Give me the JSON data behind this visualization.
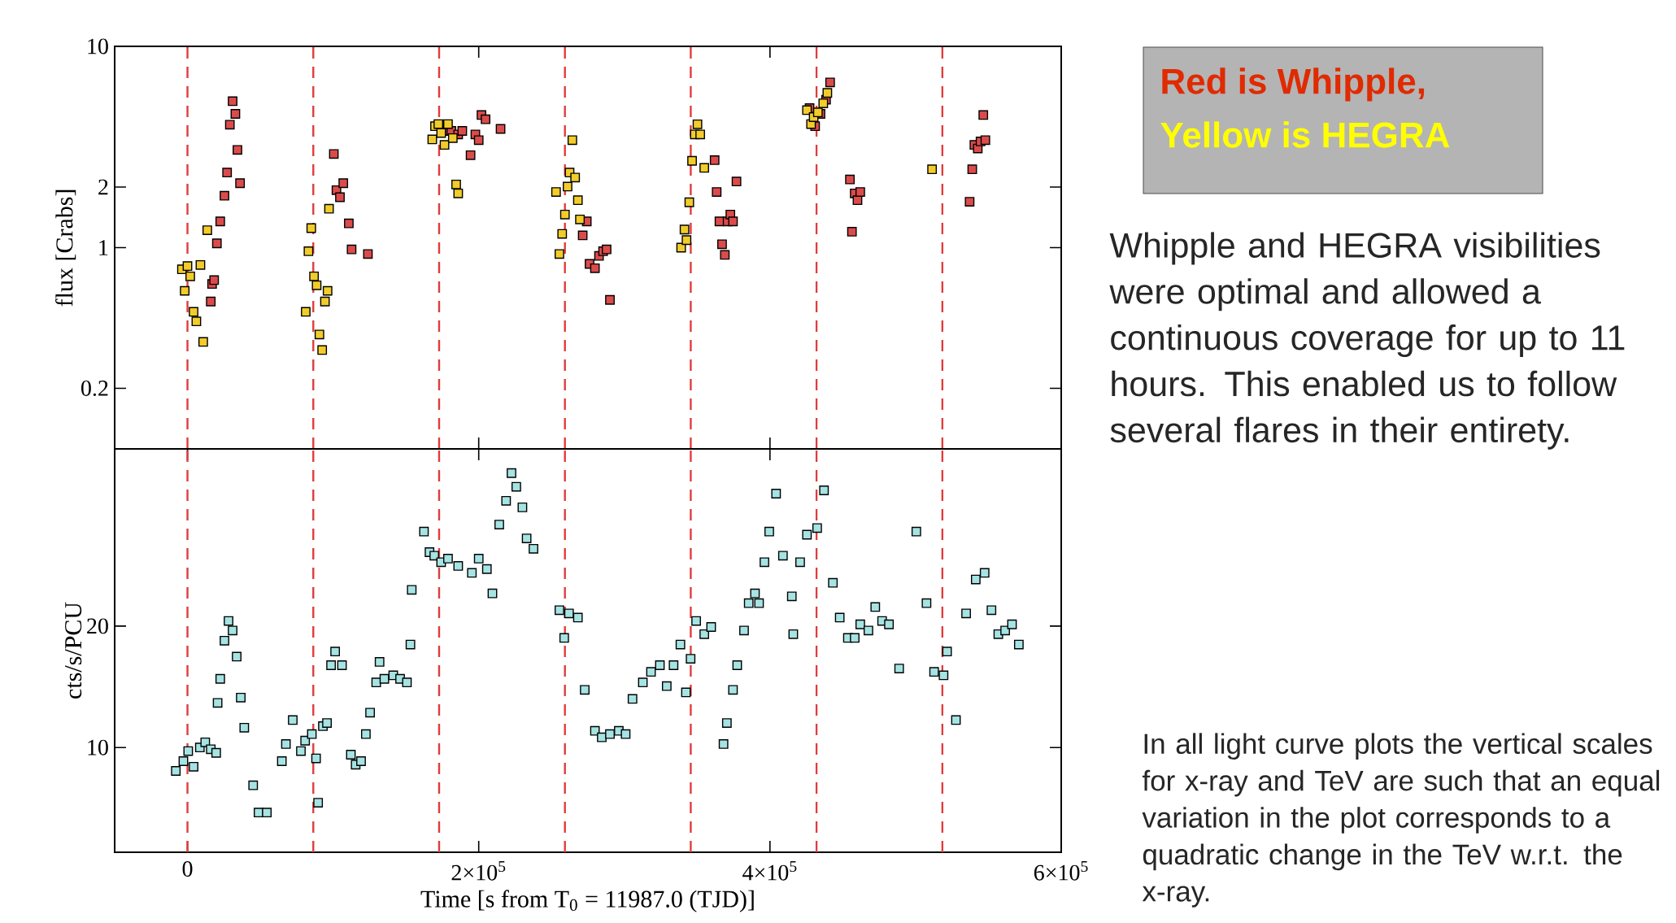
{
  "chart_data": [
    {
      "type": "scatter",
      "ylabel": "flux [Crabs]",
      "log": "y",
      "marker": "square",
      "tick_labels": "y",
      "xlim": [
        -50000,
        600000
      ],
      "xticks": [
        {
          "value": 200000,
          "label": null
        },
        {
          "value": 400000,
          "label": null
        }
      ],
      "ylim": [
        0.1,
        10
      ],
      "yticks": [
        0.2,
        1,
        2,
        10
      ],
      "ref_lines": [
        {
          "axis": "x",
          "value": 0,
          "color": "#e03c3c",
          "line_style": "dashed"
        },
        {
          "axis": "x",
          "value": 86400,
          "color": "#e03c3c",
          "line_style": "dashed"
        },
        {
          "axis": "x",
          "value": 172800,
          "color": "#e03c3c",
          "line_style": "dashed"
        },
        {
          "axis": "x",
          "value": 259200,
          "color": "#e03c3c",
          "line_style": "dashed"
        },
        {
          "axis": "x",
          "value": 345600,
          "color": "#e03c3c",
          "line_style": "dashed"
        },
        {
          "axis": "x",
          "value": 432000,
          "color": "#e03c3c",
          "line_style": "dashed"
        },
        {
          "axis": "x",
          "value": 518400,
          "color": "#e03c3c",
          "line_style": "dashed"
        }
      ],
      "annotations": [
        "Red is Whipple,",
        "Yellow is HEGRA"
      ],
      "series": [
        {
          "color": "#dc4b4b",
          "x": [
            16000,
            16900,
            18300,
            20200,
            22500,
            25400,
            27200,
            29100,
            31000,
            32900,
            34300,
            36100,
            100500,
            102300,
            104700,
            107000,
            110800,
            112700,
            123900,
            176500,
            181200,
            185900,
            188700,
            194400,
            197700,
            200000,
            201900,
            204700,
            215000,
            271400,
            274200,
            276100,
            279800,
            282600,
            285400,
            287800,
            290100,
            362000,
            363400,
            365300,
            367100,
            369000,
            370900,
            372800,
            374600,
            377000,
            427200,
            431000,
            434700,
            438500,
            441300,
            454900,
            456300,
            458200,
            460100,
            462000,
            537100,
            538900,
            540400,
            542700,
            544600,
            546500,
            547900
          ],
          "values": [
            0.54,
            0.66,
            0.69,
            1.05,
            1.35,
            1.81,
            2.36,
            4.08,
            5.34,
            4.62,
            3.06,
            2.09,
            2.92,
            1.93,
            1.78,
            2.09,
            1.32,
            0.98,
            0.93,
            3.8,
            3.8,
            3.65,
            3.8,
            2.88,
            3.65,
            3.42,
            4.56,
            4.34,
            3.89,
            1.15,
            1.35,
            0.83,
            0.79,
            0.91,
            0.96,
            0.98,
            0.55,
            2.72,
            1.89,
            1.35,
            1.04,
            0.92,
            1.35,
            1.46,
            1.35,
            2.13,
            4.93,
            4.01,
            4.62,
            5.43,
            6.62,
            2.18,
            1.2,
            1.86,
            1.72,
            1.89,
            1.69,
            2.45,
            3.24,
            3.11,
            3.37,
            4.56,
            3.42
          ]
        },
        {
          "color": "#f2cc2a",
          "x": [
            -3800,
            -1900,
            0,
            1900,
            4200,
            6100,
            8900,
            10800,
            13600,
            81200,
            83100,
            85000,
            86900,
            88700,
            90600,
            92500,
            94400,
            96200,
            97200,
            168100,
            170000,
            172300,
            174200,
            176500,
            178900,
            182200,
            184500,
            185900,
            253100,
            255400,
            257300,
            259200,
            261000,
            262400,
            264300,
            266200,
            268100,
            269500,
            339000,
            341300,
            342700,
            344600,
            346500,
            348400,
            350200,
            352100,
            354900,
            425400,
            428200,
            430000,
            432900,
            436600,
            439400,
            511300
          ],
          "values": [
            0.78,
            0.61,
            0.81,
            0.72,
            0.48,
            0.43,
            0.82,
            0.34,
            1.22,
            0.48,
            0.96,
            1.25,
            0.72,
            0.65,
            0.37,
            0.31,
            0.54,
            0.61,
            1.56,
            3.45,
            4.01,
            4.11,
            3.71,
            3.24,
            4.11,
            3.5,
            2.06,
            1.86,
            1.89,
            0.93,
            1.17,
            1.46,
            2.01,
            2.36,
            3.42,
            2.23,
            1.72,
            1.38,
            1.0,
            1.23,
            1.09,
            1.68,
            2.7,
            3.65,
            4.1,
            3.65,
            2.49,
            4.82,
            4.11,
            4.45,
            4.7,
            5.21,
            5.87,
            2.45
          ]
        }
      ]
    },
    {
      "type": "scatter",
      "ylabel": "cts/s/PCU",
      "xlabel": "Time [s from T$_{0}$ = 11987.0 (TJD)]",
      "log": "y",
      "marker": "square",
      "xlim": [
        -50000,
        600000
      ],
      "xticks": [
        0,
        {
          "value": 200000,
          "label": "2×10$^{5}$"
        },
        {
          "value": 400000,
          "label": "4×10$^{5}$"
        },
        {
          "value": 600000,
          "label": "6×10$^{5}$"
        }
      ],
      "ylim": [
        5.5,
        55
      ],
      "yticks": [
        10,
        20
      ],
      "ref_lines": [
        {
          "axis": "x",
          "value": 0,
          "color": "#e03c3c",
          "line_style": "dashed"
        },
        {
          "axis": "x",
          "value": 86400,
          "color": "#e03c3c",
          "line_style": "dashed"
        },
        {
          "axis": "x",
          "value": 172800,
          "color": "#e03c3c",
          "line_style": "dashed"
        },
        {
          "axis": "x",
          "value": 259200,
          "color": "#e03c3c",
          "line_style": "dashed"
        },
        {
          "axis": "x",
          "value": 345600,
          "color": "#e03c3c",
          "line_style": "dashed"
        },
        {
          "axis": "x",
          "value": 432000,
          "color": "#e03c3c",
          "line_style": "dashed"
        },
        {
          "axis": "x",
          "value": 518400,
          "color": "#e03c3c",
          "line_style": "dashed"
        }
      ],
      "annotations": [
        "Whipple and HEGRA visibilities were optimal and allowed a continuous coverage for up to 11 hours. This enabled us to follow several flares in their entirety.",
        "In all light curve plots the vertical scales for x-ray and TeV are such that an equal variation in the plot corresponds to a quadratic change in the TeV w.r.t. the x-ray."
      ],
      "series": [
        {
          "color": "#a6e3e3",
          "x": [
            -8000,
            -2800,
            500,
            4200,
            8500,
            12200,
            16000,
            19700,
            20700,
            22500,
            25400,
            28200,
            31000,
            33800,
            36600,
            39000,
            45100,
            48800,
            54500,
            64800,
            67600,
            72300,
            77900,
            80800,
            85400,
            88300,
            89700,
            93000,
            95800,
            98600,
            101400,
            106100,
            112200,
            115500,
            119200,
            122500,
            125400,
            129600,
            131900,
            135200,
            141300,
            146000,
            150700,
            153100,
            154000,
            162400,
            166200,
            169500,
            174200,
            178900,
            185900,
            195300,
            200000,
            205600,
            209400,
            214100,
            218800,
            222500,
            225800,
            230000,
            232900,
            237600,
            255400,
            258700,
            262000,
            268100,
            272800,
            279800,
            284500,
            290100,
            296200,
            300900,
            305600,
            312700,
            318300,
            324400,
            329100,
            333800,
            338500,
            342300,
            345500,
            349300,
            354900,
            359600,
            368100,
            370400,
            374600,
            377500,
            382200,
            385400,
            389700,
            392500,
            396200,
            399500,
            404200,
            408900,
            415000,
            416000,
            420700,
            425400,
            432400,
            437100,
            443200,
            447900,
            453500,
            458200,
            462000,
            467600,
            472300,
            477000,
            481700,
            488700,
            500500,
            507500,
            512700,
            519200,
            521600,
            527700,
            534700,
            541300,
            547400,
            552100,
            556800,
            561500,
            566200,
            570900
          ],
          "values": [
            8.75,
            9.25,
            9.8,
            8.96,
            10.0,
            10.3,
            9.9,
            9.7,
            12.9,
            14.8,
            18.4,
            20.6,
            19.5,
            16.8,
            13.3,
            11.2,
            8.06,
            6.9,
            6.9,
            9.25,
            10.2,
            11.7,
            9.8,
            10.4,
            10.8,
            9.4,
            7.3,
            11.3,
            11.5,
            16.0,
            17.3,
            16.0,
            9.6,
            9.07,
            9.25,
            10.8,
            12.2,
            14.5,
            16.3,
            14.8,
            15.1,
            14.8,
            14.5,
            18.0,
            24.6,
            34.3,
            30.5,
            29.9,
            28.8,
            29.4,
            28.2,
            27.1,
            29.4,
            27.7,
            24.1,
            35.7,
            40.9,
            47.9,
            44.3,
            39.4,
            33.0,
            31.1,
            21.9,
            18.7,
            21.5,
            21.0,
            13.9,
            11.0,
            10.6,
            10.8,
            11.0,
            10.8,
            13.2,
            14.5,
            15.4,
            16.0,
            14.2,
            16.0,
            18.0,
            13.7,
            16.6,
            20.6,
            19.1,
            19.9,
            10.2,
            11.5,
            13.9,
            16.0,
            19.5,
            22.8,
            24.1,
            22.8,
            28.8,
            34.3,
            42.6,
            29.9,
            23.7,
            19.1,
            28.8,
            33.7,
            35.0,
            43.4,
            25.6,
            21.0,
            18.7,
            18.7,
            20.2,
            19.5,
            22.3,
            20.6,
            20.2,
            15.7,
            34.3,
            22.8,
            15.4,
            15.1,
            17.3,
            11.7,
            21.5,
            26.1,
            27.1,
            21.9,
            19.1,
            19.5,
            20.2,
            18.0
          ]
        }
      ]
    }
  ]
}
